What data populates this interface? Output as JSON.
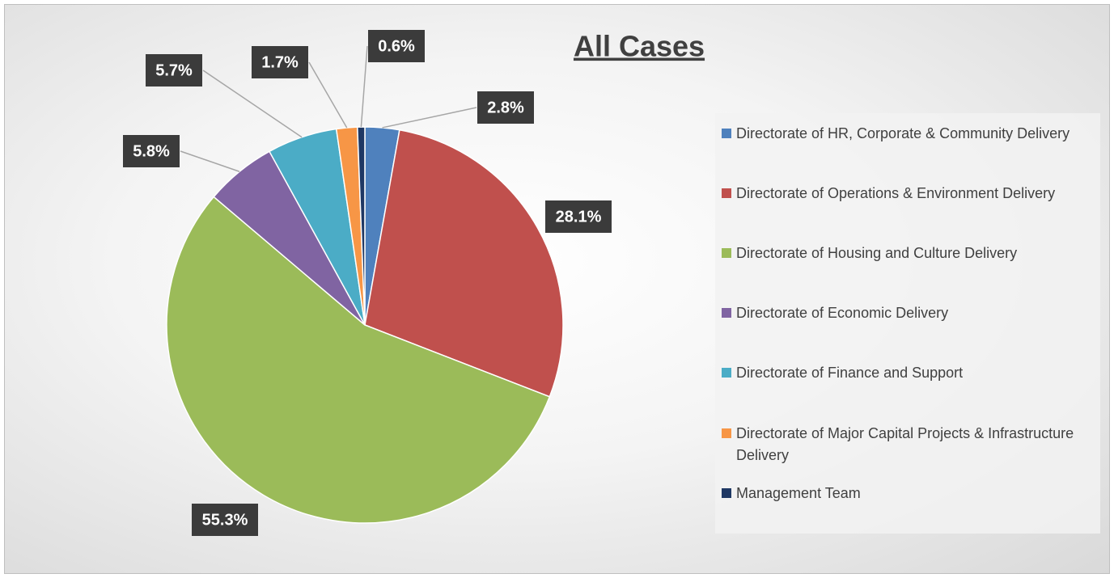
{
  "chart_data": {
    "type": "pie",
    "title": "All Cases",
    "categories": [
      "Directorate of HR, Corporate & Community Delivery",
      "Directorate of Operations & Environment Delivery",
      "Directorate of Housing and Culture Delivery",
      "Directorate of Economic Delivery",
      "Directorate of Finance and Support",
      "Directorate of Major Capital Projects & Infrastructure Delivery",
      "Management Team"
    ],
    "values": [
      2.8,
      28.1,
      55.3,
      5.8,
      5.7,
      1.7,
      0.6
    ],
    "value_labels": [
      "2.8%",
      "28.1%",
      "55.3%",
      "5.8%",
      "5.7%",
      "1.7%",
      "0.6%"
    ],
    "colors": [
      "#4f81bd",
      "#c0504d",
      "#9bbb59",
      "#8064a2",
      "#4bacc6",
      "#f79646",
      "#1f3864"
    ],
    "legend": "right"
  }
}
